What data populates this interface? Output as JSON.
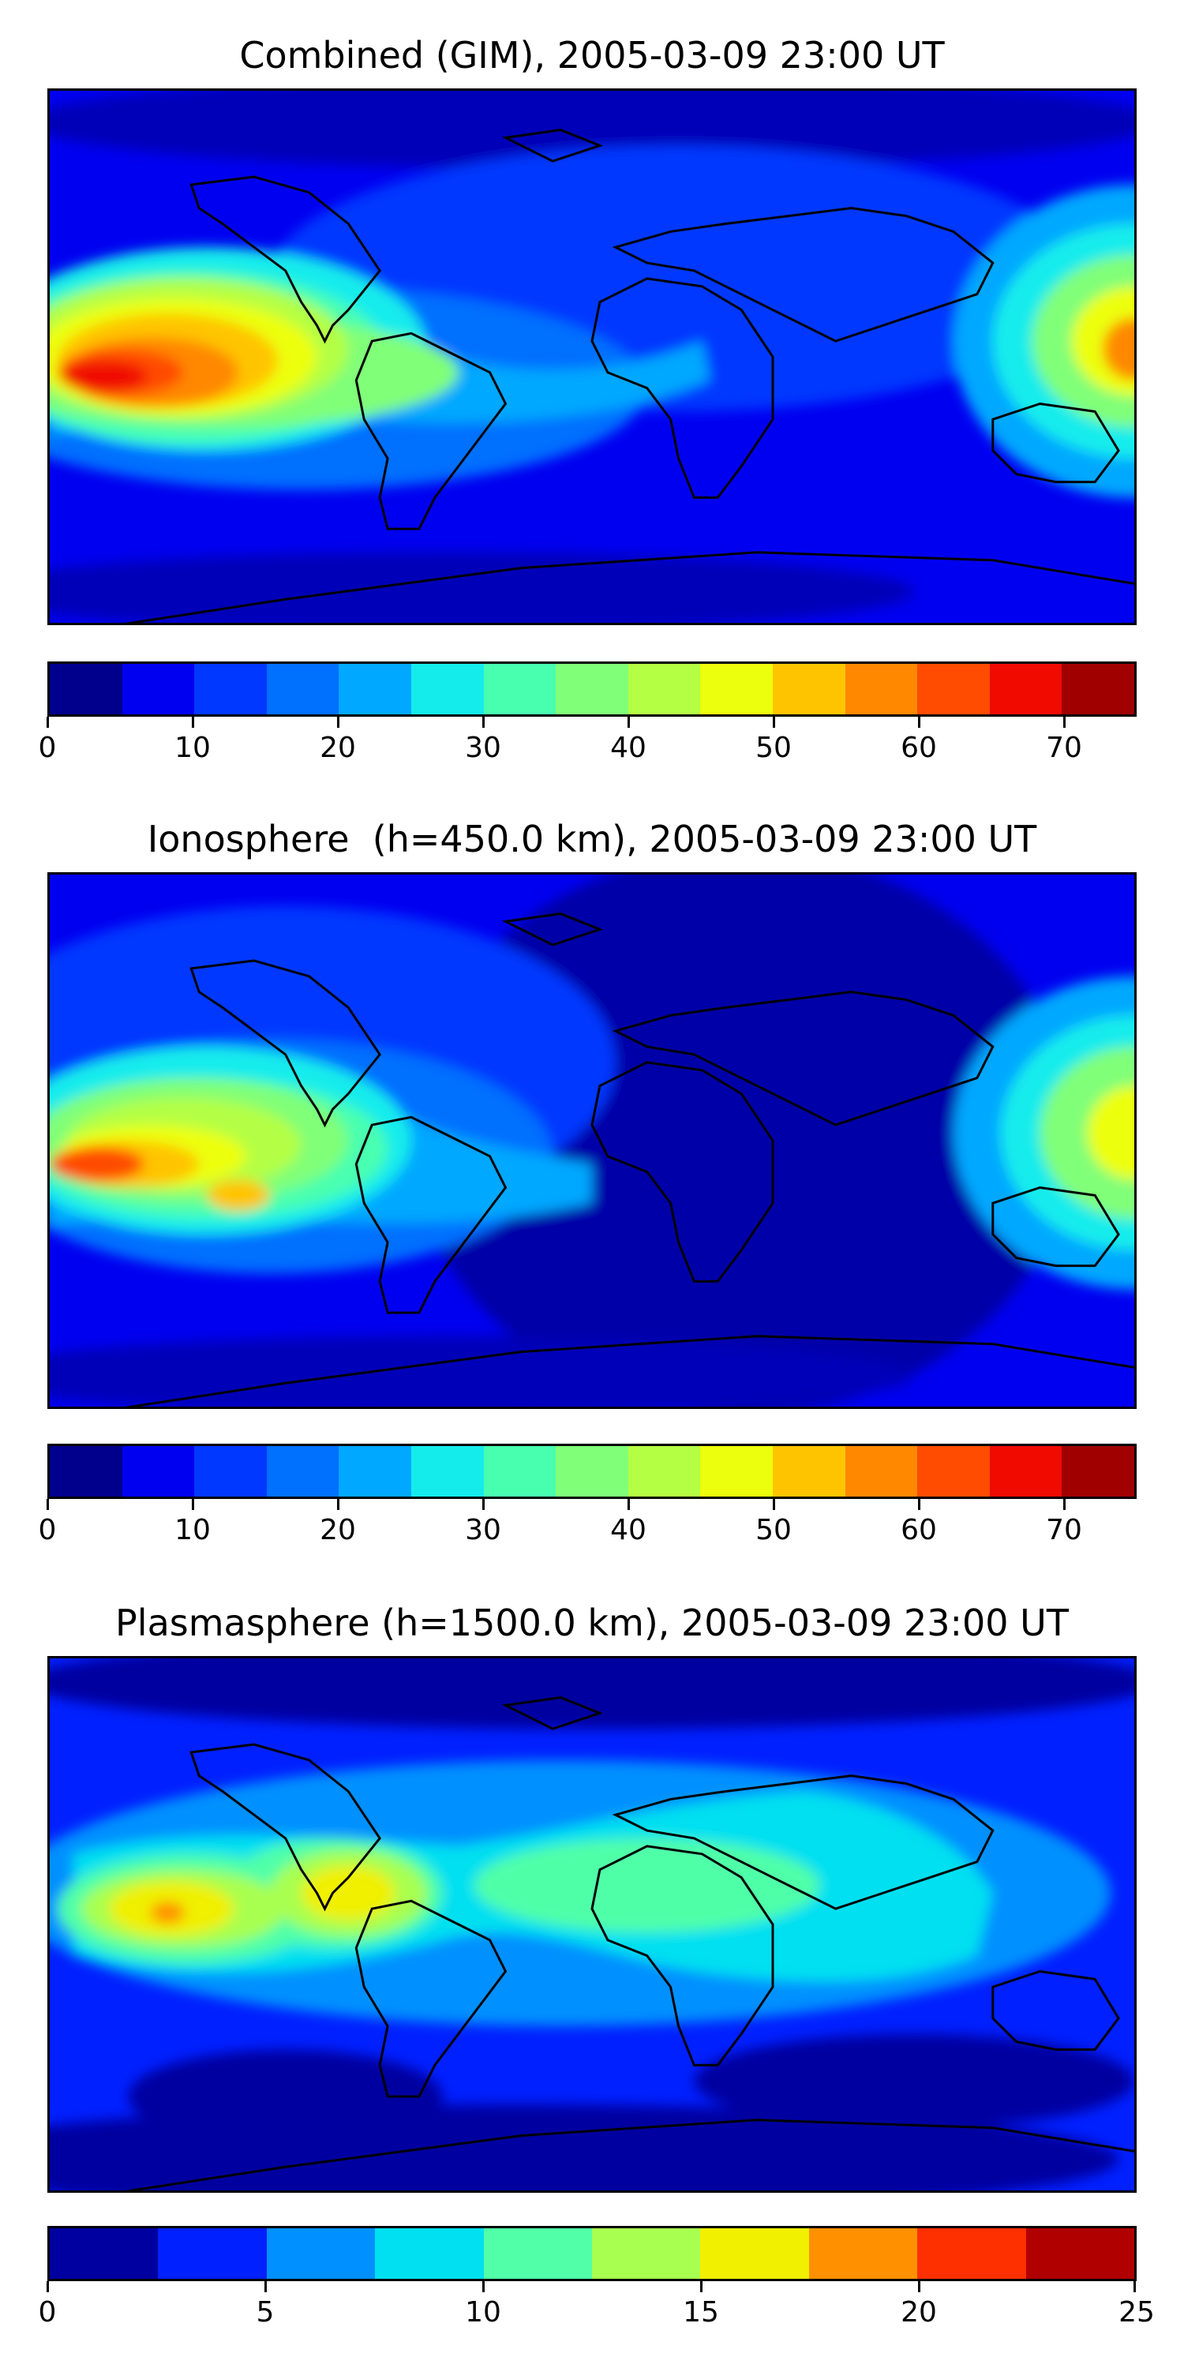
{
  "panels": [
    {
      "title": "Combined (GIM), 2005-03-09 23:00 UT",
      "colorbar": {
        "min": 0,
        "max": 75,
        "tick_labels": [
          "0",
          "10",
          "20",
          "30",
          "40",
          "50",
          "60",
          "70"
        ],
        "tick_values": [
          0,
          10,
          20,
          30,
          40,
          50,
          60,
          70
        ],
        "colors": [
          "#00008c",
          "#0000f0",
          "#0038ff",
          "#0070ff",
          "#00a8ff",
          "#14ecec",
          "#48ffb0",
          "#80ff78",
          "#b4ff44",
          "#ecff0c",
          "#ffc400",
          "#ff8800",
          "#ff4c00",
          "#f00a00",
          "#a00000"
        ]
      }
    },
    {
      "title": "Ionosphere  (h=450.0 km), 2005-03-09 23:00 UT",
      "colorbar": {
        "min": 0,
        "max": 75,
        "tick_labels": [
          "0",
          "10",
          "20",
          "30",
          "40",
          "50",
          "60",
          "70"
        ],
        "tick_values": [
          0,
          10,
          20,
          30,
          40,
          50,
          60,
          70
        ],
        "colors": [
          "#00008c",
          "#0000f0",
          "#0038ff",
          "#0070ff",
          "#00a8ff",
          "#14ecec",
          "#48ffb0",
          "#80ff78",
          "#b4ff44",
          "#ecff0c",
          "#ffc400",
          "#ff8800",
          "#ff4c00",
          "#f00a00",
          "#a00000"
        ]
      }
    },
    {
      "title": "Plasmasphere (h=1500.0 km), 2005-03-09 23:00 UT",
      "colorbar": {
        "min": 0,
        "max": 25,
        "tick_labels": [
          "0",
          "5",
          "10",
          "15",
          "20",
          "25"
        ],
        "tick_values": [
          0,
          5,
          10,
          15,
          20,
          25
        ],
        "colors": [
          "#0000a0",
          "#0020ff",
          "#0090ff",
          "#00e0f0",
          "#50ffa8",
          "#a8ff50",
          "#f0f000",
          "#ff9000",
          "#ff3000",
          "#b00000"
        ]
      }
    }
  ]
}
